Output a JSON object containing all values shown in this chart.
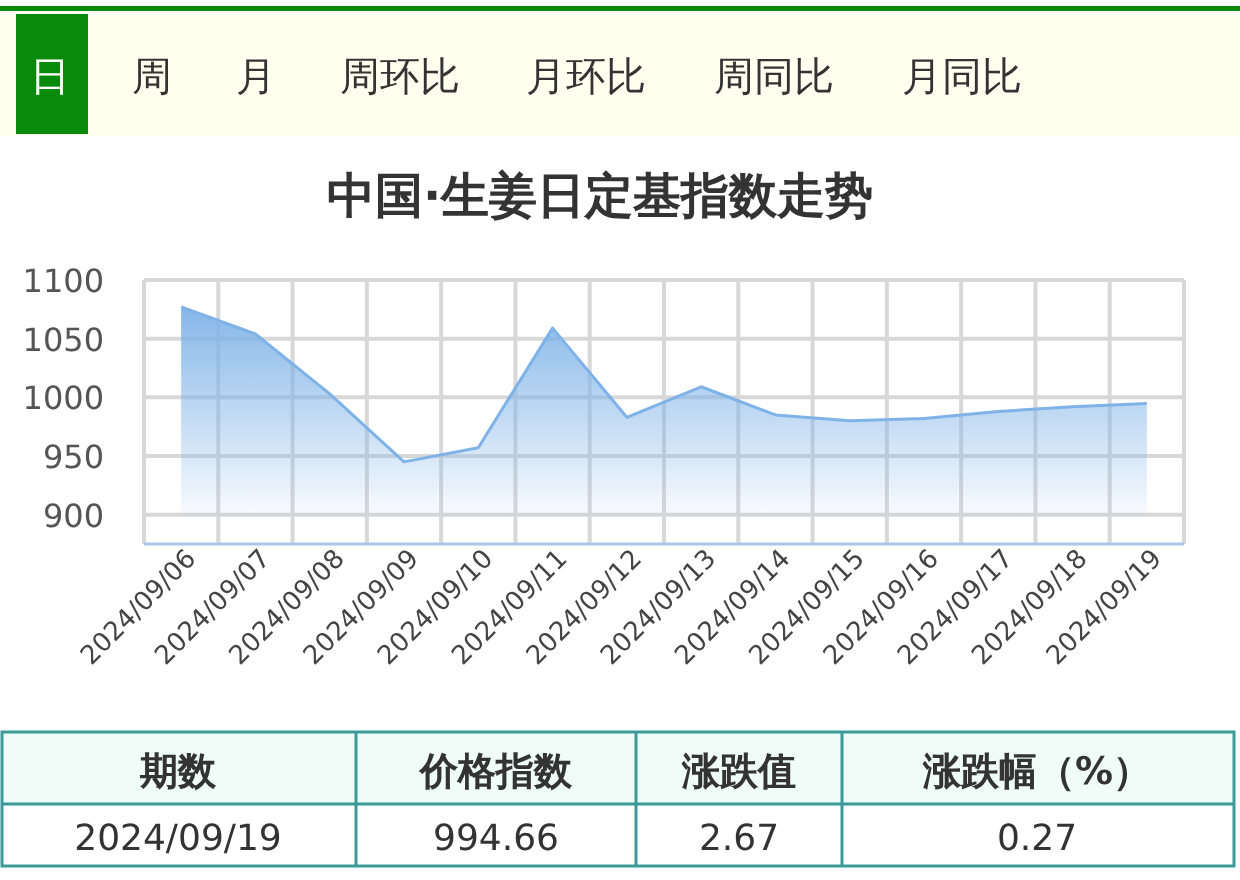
{
  "chart_data": {
    "type": "area",
    "title": "中国·生姜日定基指数走势",
    "categories": [
      "2024/09/06",
      "2024/09/07",
      "2024/09/08",
      "2024/09/09",
      "2024/09/10",
      "2024/09/11",
      "2024/09/12",
      "2024/09/13",
      "2024/09/14",
      "2024/09/15",
      "2024/09/16",
      "2024/09/17",
      "2024/09/18",
      "2024/09/19"
    ],
    "series": [
      {
        "color": "#7fb3e8",
        "values": [
          1077,
          1054,
          1003,
          945,
          957,
          1059,
          983,
          1009,
          985,
          980,
          982,
          988,
          992,
          994.66
        ]
      }
    ],
    "ylim": [
      875,
      1100
    ],
    "yticks": [
      900,
      950,
      1000,
      1050,
      1100
    ],
    "grid": true,
    "annotations": [
      "日",
      "周",
      "月",
      "周环比",
      "月环比",
      "周同比",
      "月同比",
      "期数",
      "价格指数",
      "涨跌值",
      "涨跌幅（%）",
      "2024/09/19",
      "994.66",
      "2.67",
      "0.27"
    ]
  }
}
